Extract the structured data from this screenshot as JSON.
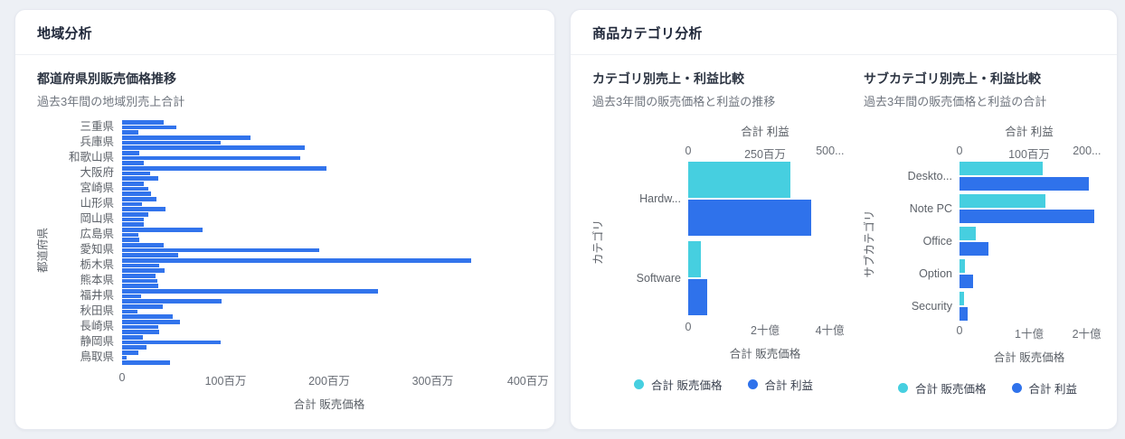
{
  "page": {
    "background": "#edf0f5"
  },
  "colors": {
    "sales_cyan": "#46cfe0",
    "profit_blue": "#2f72eb",
    "bar_blue": "#3274ec"
  },
  "panels": {
    "region": {
      "title": "地域分析"
    },
    "category": {
      "title": "商品カテゴリ分析"
    }
  },
  "chart_data": [
    {
      "type": "bar",
      "orientation": "horizontal",
      "title": "都道府県別販売価格推移",
      "subtitle": "過去3年間の地域別売上合計",
      "xlabel": "合計 販売価格",
      "ylabel": "都道府県",
      "x_ticks": [
        "0",
        "100百万",
        "200百万",
        "300百万",
        "400百万"
      ],
      "x_max": 400,
      "value_unit": "百万",
      "bars_per_category": 3,
      "categories": [
        "三重県",
        "兵庫県",
        "和歌山県",
        "大阪府",
        "宮崎県",
        "山形県",
        "岡山県",
        "広島県",
        "愛知県",
        "栃木県",
        "熊本県",
        "福井県",
        "秋田県",
        "長崎県",
        "静岡県",
        "鳥取県"
      ],
      "values": [
        [
          40,
          52,
          16
        ],
        [
          124,
          95,
          176
        ],
        [
          17,
          172,
          21
        ],
        [
          197,
          27,
          35
        ],
        [
          21,
          25,
          28
        ],
        [
          33,
          19,
          42
        ],
        [
          25,
          21,
          21
        ],
        [
          78,
          16,
          17
        ],
        [
          40,
          190,
          54
        ],
        [
          337,
          36,
          41
        ],
        [
          32,
          34,
          35
        ],
        [
          247,
          18,
          96
        ],
        [
          39,
          15,
          49
        ],
        [
          56,
          35,
          36
        ],
        [
          20,
          95,
          24
        ],
        [
          16,
          4,
          46
        ]
      ]
    },
    {
      "type": "bar",
      "orientation": "horizontal",
      "dual_axis": true,
      "title": "カテゴリ別売上・利益比較",
      "subtitle": "過去3年間の販売価格と利益の推移",
      "ylabel": "カテゴリ",
      "top_axis": {
        "label": "合計 利益",
        "ticks": [
          "0",
          "250百万",
          "500..."
        ],
        "max": 500,
        "unit": "百万"
      },
      "bottom_axis": {
        "label": "合計 販売価格",
        "ticks": [
          "0",
          "2十億",
          "4十億"
        ],
        "max": 4,
        "unit": "十億"
      },
      "categories": [
        "Hardw...",
        "Software"
      ],
      "series": [
        {
          "name": "合計 販売価格",
          "axis": "bottom",
          "values": [
            2.67,
            0.32
          ]
        },
        {
          "name": "合計 利益",
          "axis": "top",
          "values": [
            400,
            61
          ]
        }
      ],
      "legend": [
        "合計 販売価格",
        "合計 利益"
      ]
    },
    {
      "type": "bar",
      "orientation": "horizontal",
      "dual_axis": true,
      "title": "サブカテゴリ別売上・利益比較",
      "subtitle": "過去3年間の販売価格と利益の合計",
      "ylabel": "サブカテゴリ",
      "top_axis": {
        "label": "合計 利益",
        "ticks": [
          "0",
          "100百万",
          "200..."
        ],
        "max": 200,
        "unit": "百万"
      },
      "bottom_axis": {
        "label": "合計 販売価格",
        "ticks": [
          "0",
          "1十億",
          "2十億"
        ],
        "max": 2,
        "unit": "十億"
      },
      "categories": [
        "Deskto...",
        "Note PC",
        "Office",
        "Option",
        "Security"
      ],
      "series": [
        {
          "name": "合計 販売価格",
          "axis": "bottom",
          "values": [
            1.2,
            1.23,
            0.23,
            0.08,
            0.06
          ]
        },
        {
          "name": "合計 利益",
          "axis": "top",
          "values": [
            186,
            193,
            42,
            19,
            12
          ]
        }
      ],
      "legend": [
        "合計 販売価格",
        "合計 利益"
      ]
    }
  ]
}
